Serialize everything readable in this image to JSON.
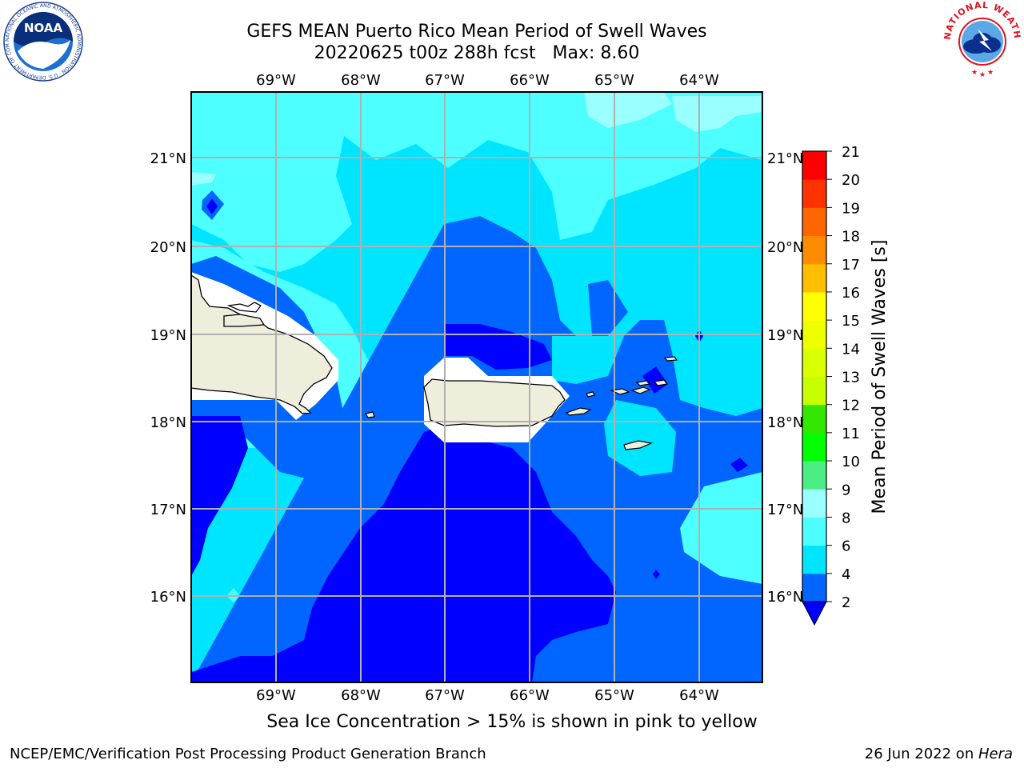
{
  "title": {
    "line1": "GEFS MEAN Puerto Rico Mean Period of Swell Waves",
    "line2": "20220625 t00z 288h fcst   Max: 8.60"
  },
  "map": {
    "lon_labels": [
      "69°W",
      "68°W",
      "67°W",
      "66°W",
      "65°W",
      "64°W"
    ],
    "lat_labels": [
      "21°N",
      "20°N",
      "19°N",
      "18°N",
      "17°N",
      "16°N"
    ]
  },
  "colorbar": {
    "label": "Mean Period of Swell Waves [s]",
    "ticks": [
      "2",
      "4",
      "6",
      "8",
      "9",
      "10",
      "11",
      "12",
      "13",
      "14",
      "15",
      "16",
      "17",
      "18",
      "19",
      "20",
      "21"
    ],
    "colors": {
      "lt2": "#0000ff",
      "2-4": "#0066ff",
      "4-6": "#00e5ff",
      "6-8": "#4dffff",
      "8-9": "#99ffff",
      "9-10": "#4ded85",
      "10-11": "#00ff00",
      "11-12": "#33e600",
      "12-13": "#c8ff00",
      "13-14": "#d9ff00",
      "14-15": "#eeff00",
      "15-16": "#ffff00",
      "16-17": "#ffbf00",
      "17-18": "#ff8c00",
      "18-19": "#ff6600",
      "19-20": "#ff3300",
      "20-21": "#ff0000"
    }
  },
  "ice_note": "Sea Ice Concentration > 15% is shown in pink to yellow",
  "footer": {
    "left": "NCEP/EMC/Verification Post Processing Product Generation Branch",
    "right_date": "26 Jun 2022 on ",
    "right_host": "Hera"
  },
  "logos": {
    "noaa": "NOAA",
    "noaa_ring": "NATIONAL OCEANIC AND ATMOSPHERIC ADMINISTRATION · U.S. DEPARTMENT OF COMMERCE",
    "nws_ring": "NATIONAL WEATHER SERVICE"
  }
}
